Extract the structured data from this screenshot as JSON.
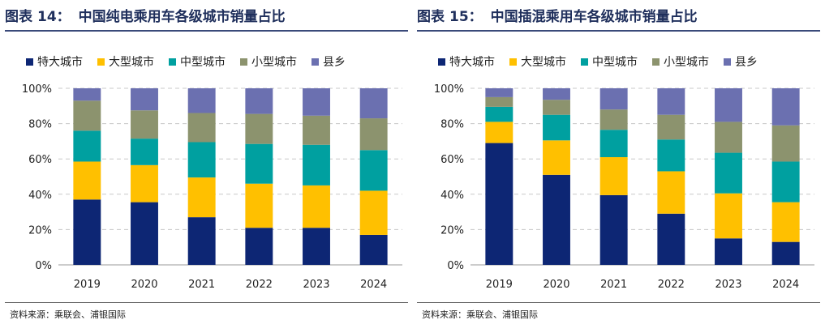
{
  "panels": [
    {
      "figure_label": "图表",
      "figure_number": "14：",
      "title": "中国纯电乘用车各级城市销量占比",
      "source": "资料来源：乘联会、浦银国际",
      "chart_data": {
        "type": "bar",
        "stacked": true,
        "categories": [
          "2019",
          "2020",
          "2021",
          "2022",
          "2023",
          "2024"
        ],
        "yticks": [
          "0%",
          "20%",
          "40%",
          "60%",
          "80%",
          "100%"
        ],
        "ylim": [
          0,
          100
        ],
        "legend_position": "top",
        "grid": true,
        "series": [
          {
            "name": "特大城市",
            "color": "#0d2674",
            "values": [
              37,
              35.5,
              27,
              21,
              21,
              17
            ]
          },
          {
            "name": "大型城市",
            "color": "#ffc000",
            "values": [
              21.5,
              21,
              22.5,
              25,
              24,
              25
            ]
          },
          {
            "name": "中型城市",
            "color": "#00a0a0",
            "values": [
              17.5,
              15,
              20,
              22.5,
              23,
              23
            ]
          },
          {
            "name": "小型城市",
            "color": "#8c936e",
            "values": [
              17,
              16,
              16.5,
              17,
              16.5,
              18
            ]
          },
          {
            "name": "县乡",
            "color": "#6b70b0",
            "values": [
              7,
              12.5,
              14,
              14.5,
              15.5,
              17
            ]
          }
        ]
      }
    },
    {
      "figure_label": "图表",
      "figure_number": "15：",
      "title": "中国插混乘用车各级城市销量占比",
      "source": "资料来源：乘联会、浦银国际",
      "chart_data": {
        "type": "bar",
        "stacked": true,
        "categories": [
          "2019",
          "2020",
          "2021",
          "2022",
          "2023",
          "2024"
        ],
        "yticks": [
          "0%",
          "20%",
          "40%",
          "60%",
          "80%",
          "100%"
        ],
        "ylim": [
          0,
          100
        ],
        "legend_position": "top",
        "grid": true,
        "series": [
          {
            "name": "特大城市",
            "color": "#0d2674",
            "values": [
              69,
              51,
              39.5,
              29,
              15,
              13
            ]
          },
          {
            "name": "大型城市",
            "color": "#ffc000",
            "values": [
              12,
              19.5,
              21.5,
              24,
              25.5,
              22.5
            ]
          },
          {
            "name": "中型城市",
            "color": "#00a0a0",
            "values": [
              8.5,
              14.5,
              15.5,
              18,
              23,
              23
            ]
          },
          {
            "name": "小型城市",
            "color": "#8c936e",
            "values": [
              5.5,
              8.5,
              11.5,
              14,
              17.5,
              20.5
            ]
          },
          {
            "name": "县乡",
            "color": "#6b70b0",
            "values": [
              5,
              6.5,
              12,
              15,
              19,
              21
            ]
          }
        ]
      }
    }
  ]
}
